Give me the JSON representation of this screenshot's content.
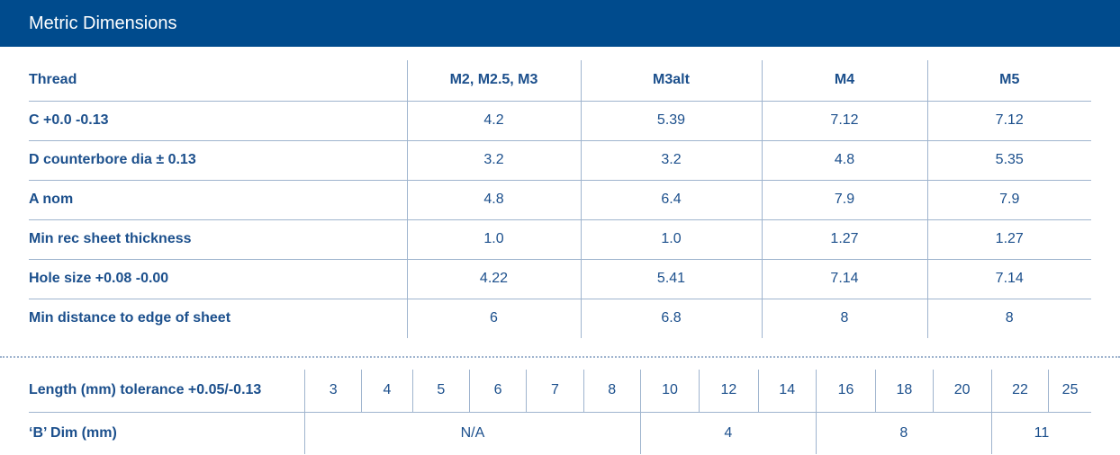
{
  "header": {
    "title": "Metric Dimensions"
  },
  "metric_table": {
    "columns": [
      "Thread",
      "M2, M2.5, M3",
      "M3alt",
      "M4",
      "M5"
    ],
    "rows": [
      {
        "label": "C +0.0 -0.13",
        "values": [
          "4.2",
          "5.39",
          "7.12",
          "7.12"
        ]
      },
      {
        "label": "D counterbore dia ± 0.13",
        "values": [
          "3.2",
          "3.2",
          "4.8",
          "5.35"
        ]
      },
      {
        "label": "A nom",
        "values": [
          "4.8",
          "6.4",
          "7.9",
          "7.9"
        ]
      },
      {
        "label": "Min rec sheet thickness",
        "values": [
          "1.0",
          "1.0",
          "1.27",
          "1.27"
        ]
      },
      {
        "label": "Hole size +0.08 -0.00",
        "values": [
          "4.22",
          "5.41",
          "7.14",
          "7.14"
        ]
      },
      {
        "label": "Min distance to edge of sheet",
        "values": [
          "6",
          "6.8",
          "8",
          "8"
        ]
      }
    ]
  },
  "length_table": {
    "length_label": "Length (mm) tolerance +0.05/-0.13",
    "lengths": [
      "3",
      "4",
      "5",
      "6",
      "7",
      "8",
      "10",
      "12",
      "14",
      "16",
      "18",
      "20",
      "22",
      "25"
    ],
    "b_dim_label": "‘B’ Dim (mm)",
    "b_dims": [
      "N/A",
      "4",
      "8",
      "11"
    ]
  }
}
